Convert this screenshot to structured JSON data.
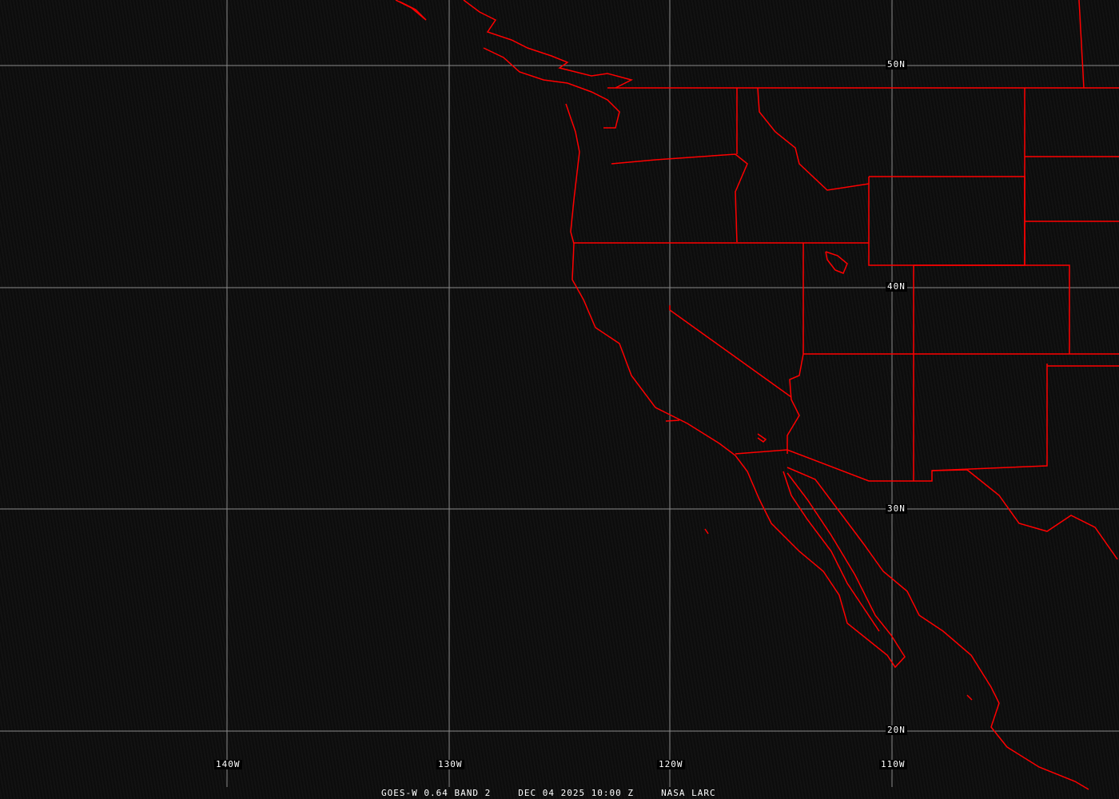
{
  "map": {
    "latitude_labels": [
      "50N",
      "40N",
      "30N",
      "20N"
    ],
    "longitude_labels": [
      "140W",
      "130W",
      "120W",
      "110W"
    ],
    "colors": {
      "borders": "#ff0000",
      "grid": "#8a8a8a",
      "background": "#0d0d0d"
    }
  },
  "caption": {
    "satellite": "GOES-W 0.64 BAND 2",
    "datetime": "DEC 04 2025 10:00 Z",
    "source": "NASA LARC"
  }
}
